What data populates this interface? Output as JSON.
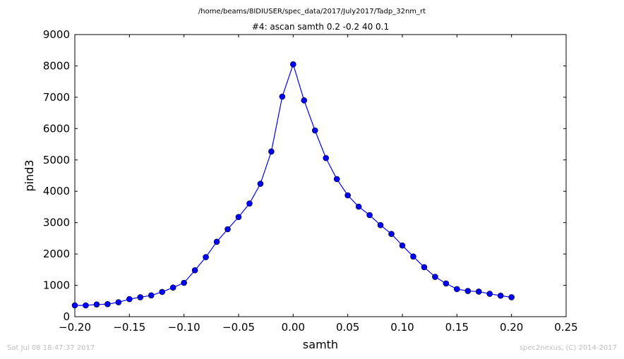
{
  "chart_data": {
    "type": "line",
    "suptitle": "/home/beams/8IDIUSER/spec_data/2017/July2017/Tadp_32nm_rt",
    "title": "#4: ascan  samth 0.2 -0.2  40 0.1",
    "xlabel": "samth",
    "ylabel": "pind3",
    "xlim": [
      -0.2,
      0.25
    ],
    "ylim": [
      0,
      9000
    ],
    "xticks": [
      -0.2,
      -0.15,
      -0.1,
      -0.05,
      0.0,
      0.05,
      0.1,
      0.15,
      0.2,
      0.25
    ],
    "xtick_labels": [
      "−0.20",
      "−0.15",
      "−0.10",
      "−0.05",
      "0.00",
      "0.05",
      "0.10",
      "0.15",
      "0.20",
      "0.25"
    ],
    "yticks": [
      0,
      1000,
      2000,
      3000,
      4000,
      5000,
      6000,
      7000,
      8000,
      9000
    ],
    "ytick_labels": [
      "0",
      "1000",
      "2000",
      "3000",
      "4000",
      "5000",
      "6000",
      "7000",
      "8000",
      "9000"
    ],
    "grid": false,
    "line_color": "#0000ff",
    "x": [
      -0.2,
      -0.19,
      -0.18,
      -0.17,
      -0.16,
      -0.15,
      -0.14,
      -0.13,
      -0.12,
      -0.11,
      -0.1,
      -0.09,
      -0.08,
      -0.07,
      -0.06,
      -0.05,
      -0.04,
      -0.03,
      -0.02,
      -0.01,
      0.0,
      0.01,
      0.02,
      0.03,
      0.04,
      0.05,
      0.06,
      0.07,
      0.08,
      0.09,
      0.1,
      0.11,
      0.12,
      0.13,
      0.14,
      0.15,
      0.16,
      0.17,
      0.18,
      0.19,
      0.2
    ],
    "y": [
      360,
      360,
      390,
      400,
      460,
      560,
      620,
      680,
      790,
      930,
      1080,
      1480,
      1900,
      2390,
      2790,
      3180,
      3610,
      4240,
      5270,
      7020,
      8050,
      6900,
      5940,
      5060,
      4390,
      3870,
      3510,
      3240,
      2920,
      2640,
      2270,
      1920,
      1580,
      1270,
      1060,
      880,
      820,
      800,
      730,
      670,
      620
    ]
  },
  "footer": {
    "timestamp": "Sat Jul 08 18:47:37 2017",
    "credit": "spec2nexus, (C) 2014-2017"
  }
}
